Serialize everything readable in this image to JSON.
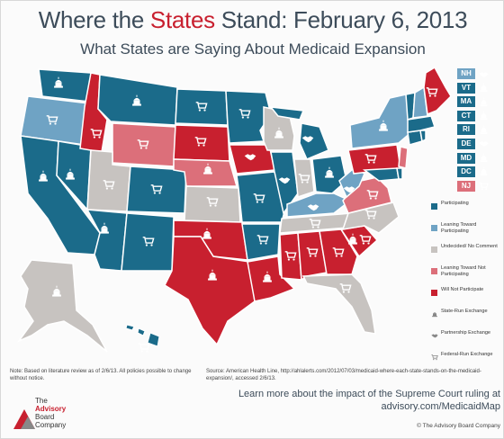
{
  "header": {
    "title_before": "Where the ",
    "title_highlight": "States",
    "title_after": " Stand: February 6, 2013",
    "subtitle": "What States are Saying About Medicaid Expansion"
  },
  "colors": {
    "participating": "#1b6b8a",
    "leaning_toward": "#6fa3c4",
    "undecided": "#c7c3c0",
    "leaning_not": "#dc6f7a",
    "not_participating": "#c8202f"
  },
  "small_states": [
    {
      "label": "NH",
      "status": "leaning_toward",
      "exchange": "partnership"
    },
    {
      "label": "VT",
      "status": "participating",
      "exchange": "state-run"
    },
    {
      "label": "MA",
      "status": "participating",
      "exchange": "state-run"
    },
    {
      "label": "CT",
      "status": "participating",
      "exchange": "state-run"
    },
    {
      "label": "RI",
      "status": "participating",
      "exchange": "state-run"
    },
    {
      "label": "DE",
      "status": "participating",
      "exchange": "partnership"
    },
    {
      "label": "MD",
      "status": "participating",
      "exchange": "state-run"
    },
    {
      "label": "DC",
      "status": "participating",
      "exchange": "state-run"
    },
    {
      "label": "NJ",
      "status": "leaning_not",
      "exchange": "federal-run"
    }
  ],
  "legend": {
    "items": [
      {
        "label": "Participating",
        "color": "#1b6b8a"
      },
      {
        "label": "Leaning Toward Participating",
        "color": "#6fa3c4"
      },
      {
        "label": "Undecided/ No Comment",
        "color": "#c7c3c0"
      },
      {
        "label": "Leaning Toward Not Participating",
        "color": "#dc6f7a"
      },
      {
        "label": "Will Not Participate",
        "color": "#c8202f"
      }
    ],
    "exchange_items": [
      {
        "label": "State-Run Exchange",
        "icon": "capitol-icon"
      },
      {
        "label": "Partnership Exchange",
        "icon": "handshake-icon"
      },
      {
        "label": "Federal-Run Exchange",
        "icon": "shopping-cart-icon"
      }
    ]
  },
  "footer": {
    "note": "Note: Based on literature review as of 2/6/13. All policies possible to change without notice.",
    "source": "Source: American Health Line, http://ahlalerts.com/2012/07/03/medicaid-where-each-state-stands-on-the-medicaid-expansion/, accessed 2/6/13.",
    "learn_line1": "Learn more about the impact of the Supreme Court ruling at",
    "learn_line2": "advisory.com/MedicaidMap",
    "copyright": "© The Advisory Board Company",
    "logo_line1": "The",
    "logo_line2": "Advisory",
    "logo_line3": "Board",
    "logo_line4": "Company"
  }
}
